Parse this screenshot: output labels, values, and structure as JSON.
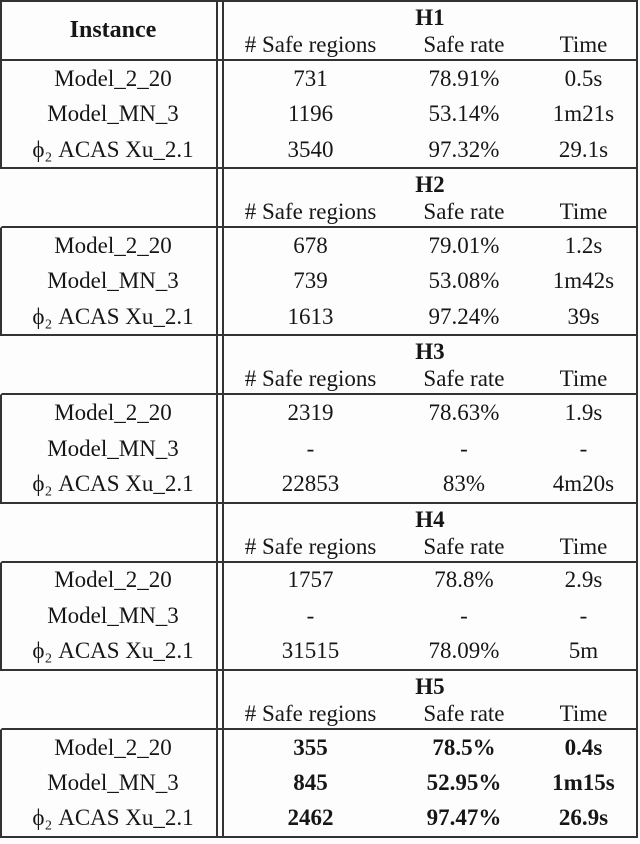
{
  "table": {
    "instance_header": "Instance",
    "columns": [
      "# Safe regions",
      "Safe rate",
      "Time"
    ],
    "row_labels": [
      "Model_2_20",
      "Model_MN_3",
      "ϕ₂ ACAS Xu_2.1"
    ],
    "sections": [
      {
        "name": "H1",
        "bold": false,
        "rows": [
          [
            "731",
            "78.91%",
            "0.5s"
          ],
          [
            "1196",
            "53.14%",
            "1m21s"
          ],
          [
            "3540",
            "97.32%",
            "29.1s"
          ]
        ]
      },
      {
        "name": "H2",
        "bold": false,
        "rows": [
          [
            "678",
            "79.01%",
            "1.2s"
          ],
          [
            "739",
            "53.08%",
            "1m42s"
          ],
          [
            "1613",
            "97.24%",
            "39s"
          ]
        ]
      },
      {
        "name": "H3",
        "bold": false,
        "rows": [
          [
            "2319",
            "78.63%",
            "1.9s"
          ],
          [
            "-",
            "-",
            "-"
          ],
          [
            "22853",
            "83%",
            "4m20s"
          ]
        ]
      },
      {
        "name": "H4",
        "bold": false,
        "rows": [
          [
            "1757",
            "78.8%",
            "2.9s"
          ],
          [
            "-",
            "-",
            "-"
          ],
          [
            "31515",
            "78.09%",
            "5m"
          ]
        ]
      },
      {
        "name": "H5",
        "bold": true,
        "rows": [
          [
            "355",
            "78.5%",
            "0.4s"
          ],
          [
            "845",
            "52.95%",
            "1m15s"
          ],
          [
            "2462",
            "97.47%",
            "26.9s"
          ]
        ]
      }
    ],
    "colors": {
      "line": "#333333",
      "ink": "#161616",
      "paper": "#fdfdfd"
    }
  }
}
